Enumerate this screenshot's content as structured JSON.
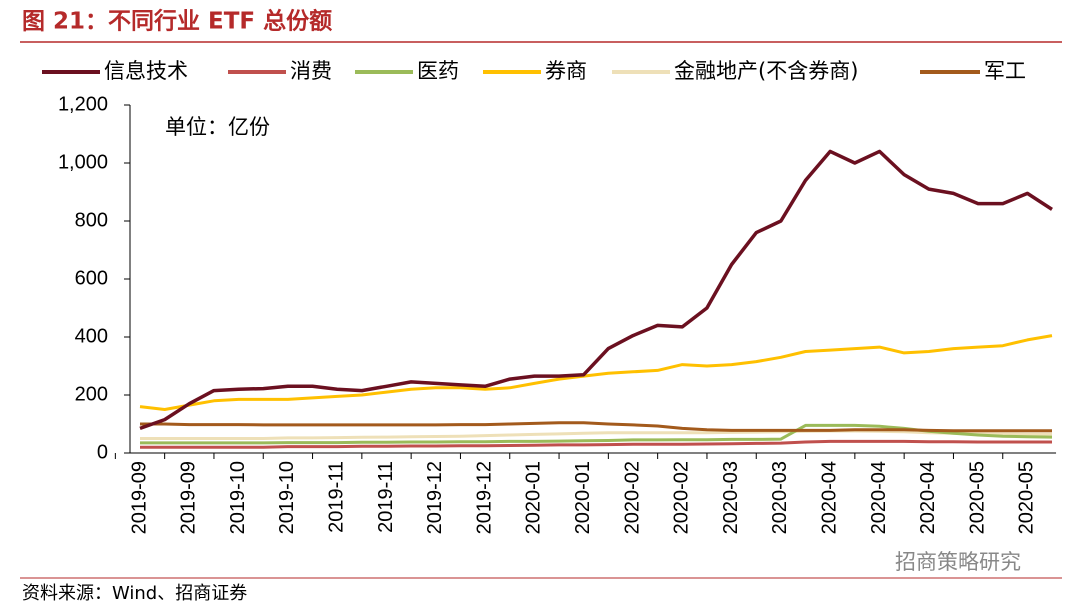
{
  "chart_data": {
    "type": "line",
    "title": "图 21：不同行业 ETF 总份额",
    "annotation": "单位：亿份",
    "source": "资料来源：Wind、招商证券",
    "watermark": "招商策略研究",
    "categories": [
      "2019-09",
      null,
      "2019-09",
      null,
      "2019-10",
      null,
      "2019-10",
      null,
      "2019-11",
      null,
      "2019-11",
      null,
      "2019-12",
      null,
      "2019-12",
      null,
      "2020-01",
      null,
      "2020-01",
      null,
      "2020-02",
      null,
      "2020-02",
      null,
      "2020-03",
      null,
      "2020-03",
      null,
      "2020-04",
      null,
      "2020-04",
      null,
      "2020-04",
      null,
      "2020-05",
      null,
      "2020-05",
      null
    ],
    "ylim": [
      0,
      1200
    ],
    "yticks": [
      0,
      200,
      400,
      600,
      800,
      {
        "value": 1000,
        "label": "1,000"
      },
      {
        "value": 1200,
        "label": "1,200"
      }
    ],
    "series": [
      {
        "name": "信息技术",
        "color": "#6b1020",
        "values": [
          85,
          115,
          170,
          215,
          220,
          222,
          230,
          230,
          220,
          215,
          230,
          245,
          240,
          235,
          230,
          255,
          265,
          265,
          270,
          360,
          405,
          440,
          435,
          500,
          650,
          760,
          800,
          940,
          1040,
          1000,
          1040,
          960,
          910,
          895,
          860,
          860,
          895,
          840
        ]
      },
      {
        "name": "消费",
        "color": "#c0504d",
        "values": [
          20,
          20,
          20,
          20,
          20,
          20,
          22,
          22,
          22,
          23,
          23,
          24,
          24,
          25,
          25,
          26,
          27,
          28,
          28,
          29,
          30,
          30,
          30,
          31,
          32,
          33,
          34,
          38,
          40,
          40,
          40,
          40,
          39,
          39,
          38,
          38,
          38,
          38
        ]
      },
      {
        "name": "医药",
        "color": "#9bbb59",
        "values": [
          35,
          35,
          35,
          35,
          35,
          35,
          36,
          36,
          36,
          37,
          37,
          38,
          38,
          39,
          39,
          40,
          40,
          41,
          42,
          43,
          45,
          45,
          46,
          46,
          47,
          47,
          48,
          95,
          95,
          95,
          92,
          85,
          75,
          68,
          62,
          58,
          56,
          55
        ]
      },
      {
        "name": "券商",
        "color": "#ffc000",
        "values": [
          160,
          150,
          165,
          180,
          185,
          185,
          185,
          190,
          195,
          200,
          210,
          220,
          225,
          225,
          220,
          225,
          240,
          255,
          265,
          275,
          280,
          285,
          305,
          300,
          305,
          315,
          330,
          350,
          355,
          360,
          365,
          345,
          350,
          360,
          365,
          370,
          390,
          405
        ]
      },
      {
        "name": "金融地产(不含券商)",
        "color": "#eee0b8",
        "values": [
          50,
          50,
          50,
          50,
          50,
          50,
          52,
          52,
          53,
          54,
          55,
          56,
          57,
          58,
          60,
          62,
          64,
          66,
          68,
          70,
          70,
          70,
          70,
          70,
          71,
          72,
          73,
          75,
          76,
          76,
          75,
          73,
          70,
          68,
          67,
          66,
          65,
          65
        ]
      },
      {
        "name": "军工",
        "color": "#a35a1c",
        "values": [
          100,
          100,
          98,
          98,
          98,
          97,
          97,
          97,
          97,
          97,
          97,
          97,
          97,
          98,
          98,
          100,
          102,
          104,
          104,
          100,
          97,
          93,
          85,
          80,
          78,
          78,
          78,
          78,
          78,
          80,
          80,
          80,
          78,
          77,
          77,
          77,
          77,
          77
        ]
      }
    ]
  }
}
